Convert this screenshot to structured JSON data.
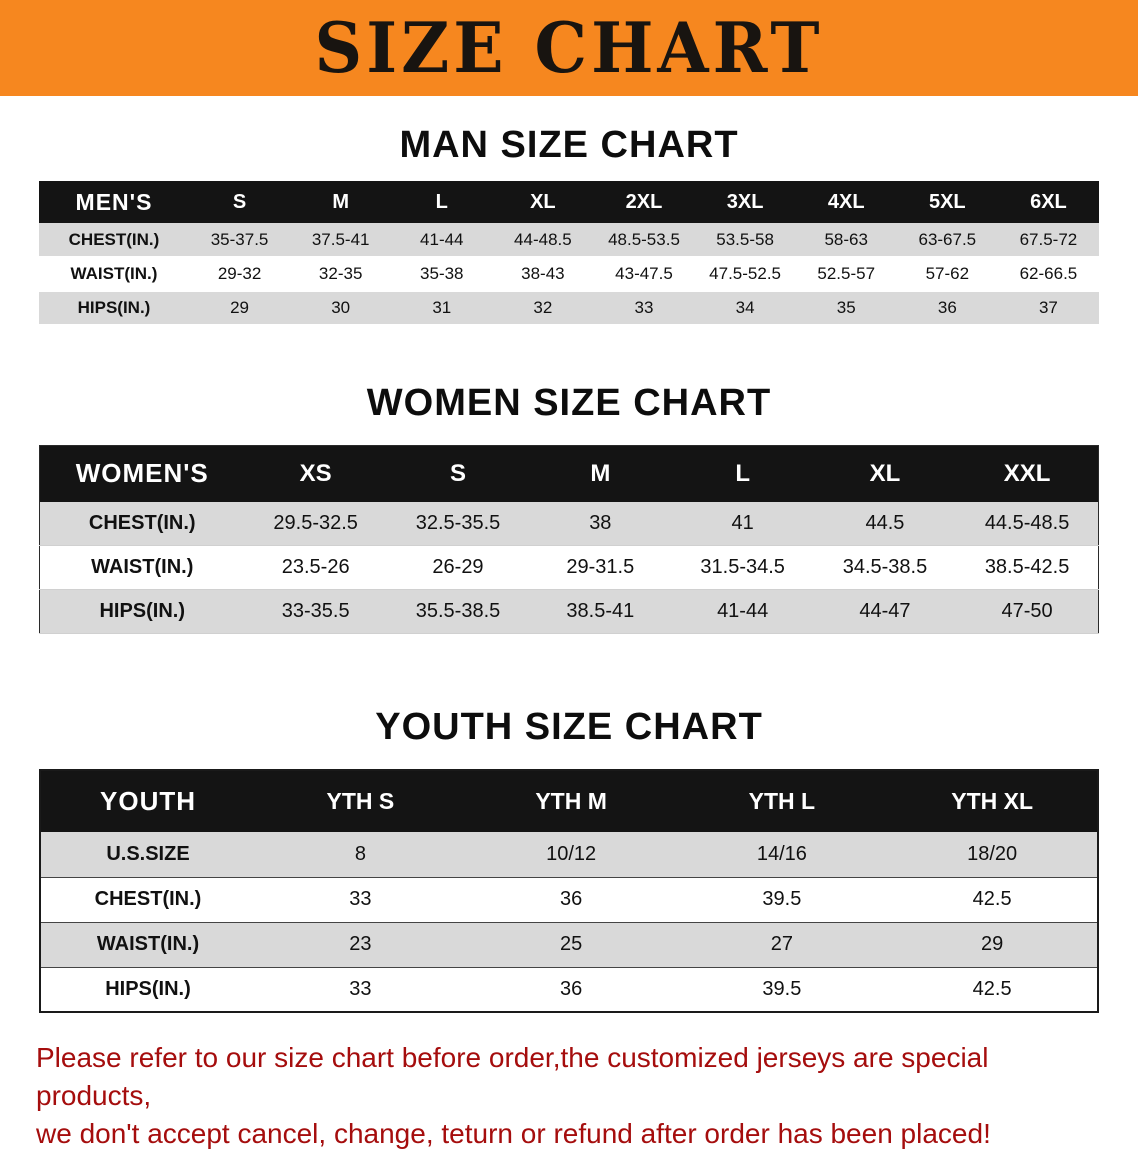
{
  "banner": {
    "title": "SIZE CHART",
    "bg_color": "#f6871f",
    "text_color": "#181410"
  },
  "sections": {
    "men": {
      "title": "MAN SIZE CHART"
    },
    "women": {
      "title": "WOMEN SIZE CHART"
    },
    "youth": {
      "title": "YOUTH SIZE CHART"
    }
  },
  "tables": {
    "men": {
      "header": [
        "MEN'S",
        "S",
        "M",
        "L",
        "XL",
        "2XL",
        "3XL",
        "4XL",
        "5XL",
        "6XL"
      ],
      "rows": [
        [
          "CHEST(IN.)",
          "35-37.5",
          "37.5-41",
          "41-44",
          "44-48.5",
          "48.5-53.5",
          "53.5-58",
          "58-63",
          "63-67.5",
          "67.5-72"
        ],
        [
          "WAIST(IN.)",
          "29-32",
          "32-35",
          "35-38",
          "38-43",
          "43-47.5",
          "47.5-52.5",
          "52.5-57",
          "57-62",
          "62-66.5"
        ],
        [
          "HIPS(IN.)",
          "29",
          "30",
          "31",
          "32",
          "33",
          "34",
          "35",
          "36",
          "37"
        ]
      ]
    },
    "women": {
      "header": [
        "WOMEN'S",
        "XS",
        "S",
        "M",
        "L",
        "XL",
        "XXL"
      ],
      "rows": [
        [
          "CHEST(IN.)",
          "29.5-32.5",
          "32.5-35.5",
          "38",
          "41",
          "44.5",
          "44.5-48.5"
        ],
        [
          "WAIST(IN.)",
          "23.5-26",
          "26-29",
          "29-31.5",
          "31.5-34.5",
          "34.5-38.5",
          "38.5-42.5"
        ],
        [
          "HIPS(IN.)",
          "33-35.5",
          "35.5-38.5",
          "38.5-41",
          "41-44",
          "44-47",
          "47-50"
        ]
      ]
    },
    "youth": {
      "header": [
        "YOUTH",
        "YTH S",
        "YTH M",
        "YTH L",
        "YTH XL"
      ],
      "rows": [
        [
          "U.S.SIZE",
          "8",
          "10/12",
          "14/16",
          "18/20"
        ],
        [
          "CHEST(IN.)",
          "33",
          "36",
          "39.5",
          "42.5"
        ],
        [
          "WAIST(IN.)",
          "23",
          "25",
          "27",
          "29"
        ],
        [
          "HIPS(IN.)",
          "33",
          "36",
          "39.5",
          "42.5"
        ]
      ]
    }
  },
  "disclaimer": {
    "line1": "Please refer to our size chart before order,the customized jerseys are special products,",
    "line2": "we don't accept cancel, change, teturn or refund after order has been placed!",
    "color": "#a50d0d"
  }
}
